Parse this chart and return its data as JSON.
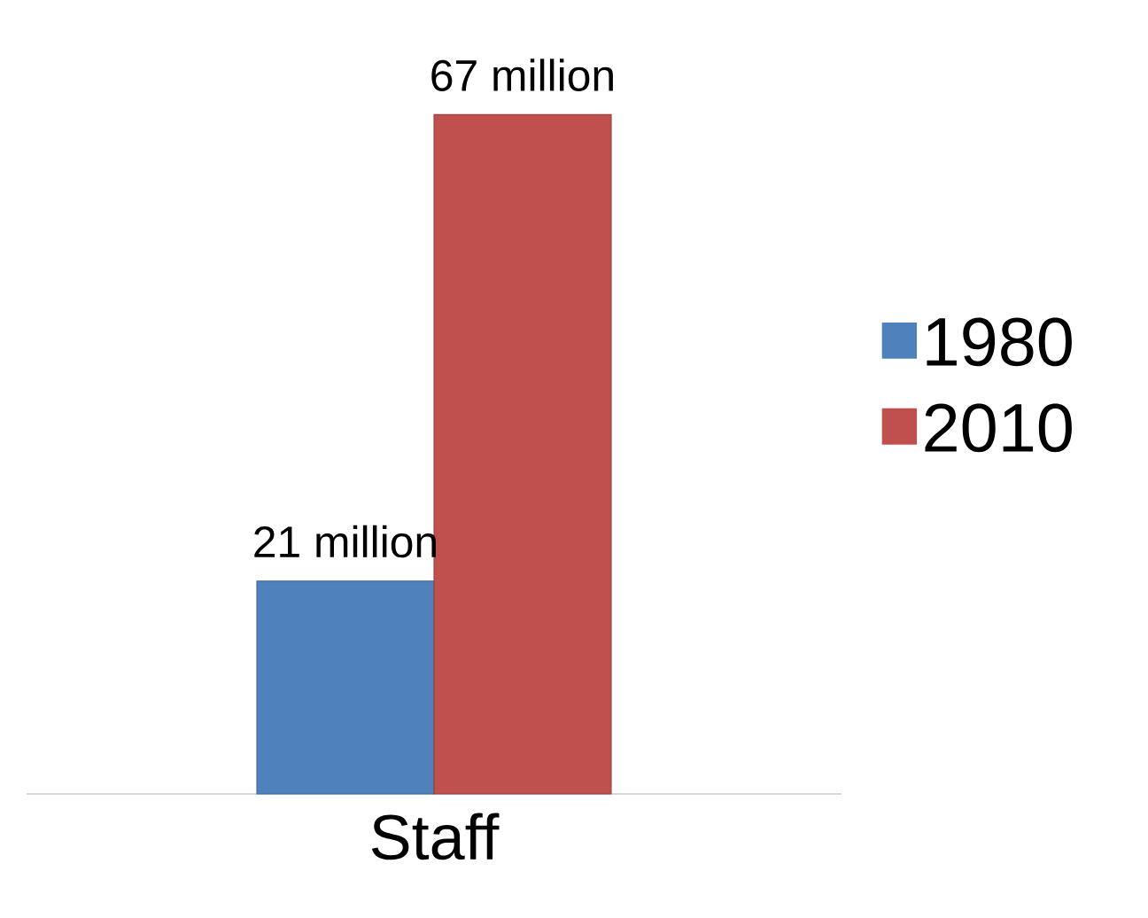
{
  "chart_data": {
    "type": "bar",
    "categories": [
      "Staff"
    ],
    "series": [
      {
        "name": "1980",
        "color": "#4f81bd",
        "values": [
          21
        ],
        "value_labels": [
          "21 million"
        ]
      },
      {
        "name": "2010",
        "color": "#c0504d",
        "values": [
          67
        ],
        "value_labels": [
          "67 million"
        ]
      }
    ],
    "legend": "right",
    "tick_labels": "x",
    "grid": false
  }
}
